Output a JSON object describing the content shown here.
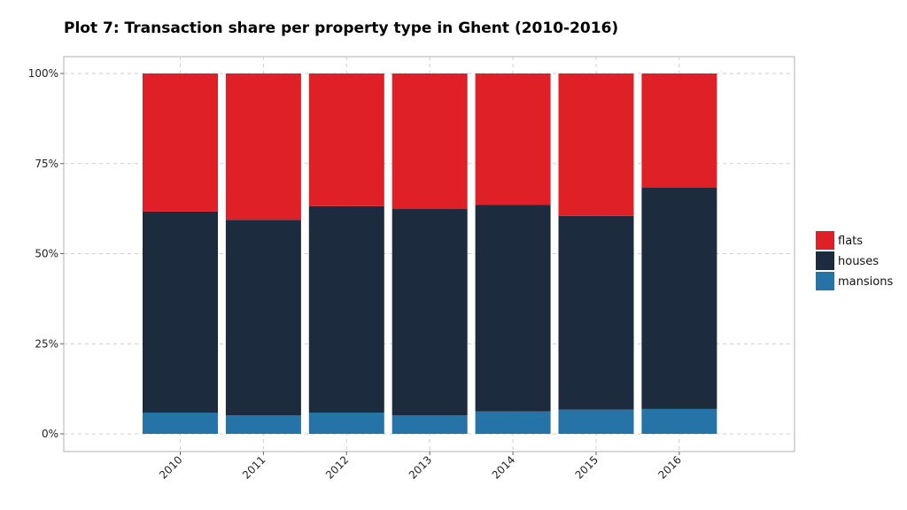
{
  "chart_data": {
    "type": "bar",
    "stacked": true,
    "percent": true,
    "title": "Plot 7: Transaction share per property type in Ghent (2010-2016)",
    "xlabel": "",
    "ylabel": "",
    "categories": [
      "2010",
      "2011",
      "2012",
      "2013",
      "2014",
      "2015",
      "2016"
    ],
    "series": [
      {
        "name": "mansions",
        "color": "#2673a8",
        "values": [
          5.9,
          5.1,
          5.9,
          5.1,
          6.2,
          6.7,
          6.9
        ]
      },
      {
        "name": "houses",
        "color": "#1c2b3d",
        "values": [
          55.8,
          54.3,
          57.3,
          57.3,
          57.4,
          53.8,
          61.4
        ]
      },
      {
        "name": "flats",
        "color": "#e02027",
        "values": [
          38.3,
          40.6,
          36.8,
          37.6,
          36.4,
          39.5,
          31.7
        ]
      }
    ],
    "ylim": [
      0,
      100
    ],
    "yticks": [
      "0%",
      "25%",
      "50%",
      "75%",
      "100%"
    ],
    "grid": true,
    "legend": {
      "position": "right",
      "order": [
        "flats",
        "houses",
        "mansions"
      ]
    }
  }
}
